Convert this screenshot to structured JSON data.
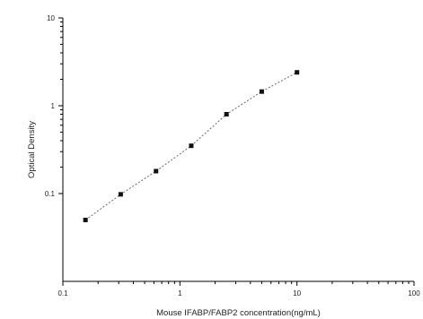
{
  "chart_data": {
    "type": "scatter",
    "title": "",
    "xlabel": "Mouse IFABP/FABP2 concentration(ng/mL)",
    "ylabel": "Optical Density",
    "x_scale": "log",
    "y_scale": "log",
    "xlim": [
      0.1,
      100
    ],
    "ylim": [
      0.01,
      10
    ],
    "x_tick_labels": [
      "0.1",
      "1",
      "10",
      "100"
    ],
    "y_tick_labels": [
      "0.1",
      "1",
      "10"
    ],
    "grid": false,
    "legend": "none",
    "series": [
      {
        "x": [
          0.156,
          0.312,
          0.625,
          1.25,
          2.5,
          5,
          10
        ],
        "y": [
          0.05,
          0.098,
          0.18,
          0.35,
          0.8,
          1.45,
          2.4
        ],
        "marker": "square",
        "color": "#111111",
        "fit_line": "dotted"
      }
    ]
  }
}
